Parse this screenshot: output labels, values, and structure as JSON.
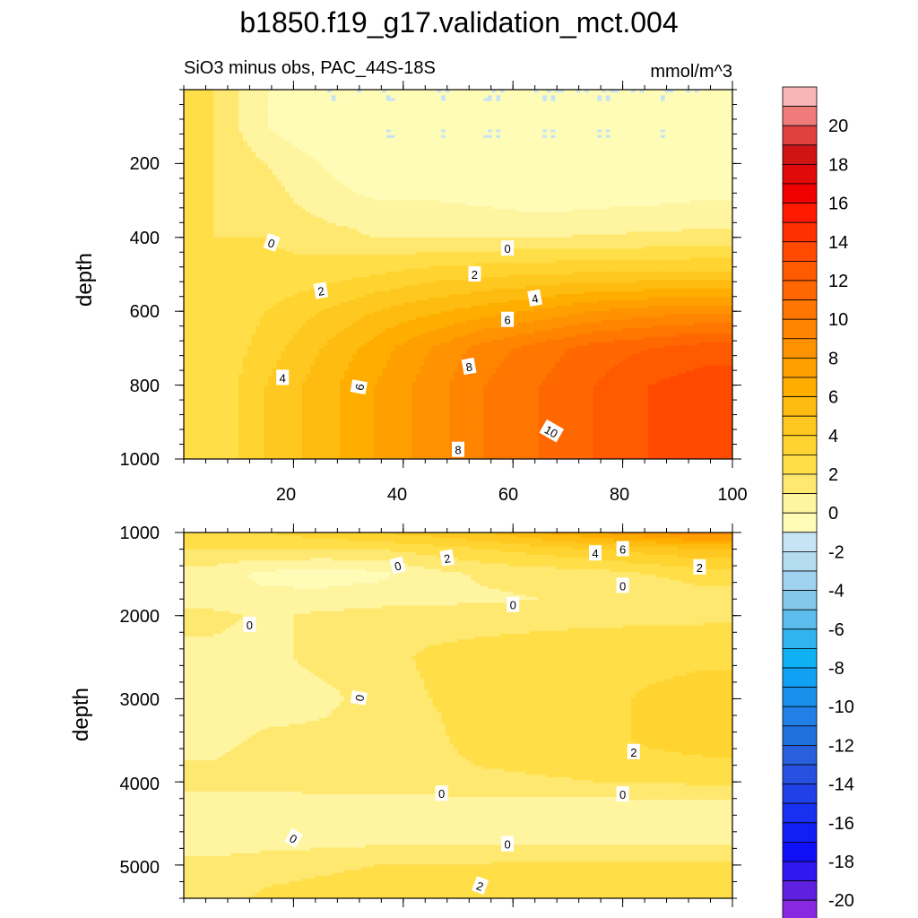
{
  "title": "b1850.f19_g17.validation_mct.004",
  "chart_data": [
    {
      "type": "heatmap",
      "panel": "top",
      "subtitle_left": "SiO3 minus obs, PAC_44S-18S",
      "subtitle_right": "mmol/m^3",
      "ylabel": "depth",
      "xlim": [
        0,
        100
      ],
      "ylim": [
        0,
        1000
      ],
      "y_reversed": true,
      "x_ticks": [
        "20",
        "40",
        "60",
        "80",
        "100"
      ],
      "y_ticks": [
        "200",
        "400",
        "600",
        "800",
        "1000"
      ],
      "columns_x": [
        5,
        15,
        25,
        35,
        45,
        55,
        65,
        75,
        85,
        95
      ],
      "rows_depth": [
        0,
        100,
        200,
        300,
        400,
        500,
        600,
        700,
        800,
        900,
        1000
      ],
      "values": [
        [
          1,
          -1,
          -2,
          -2,
          -2,
          -2,
          -2,
          -2,
          -2,
          -2
        ],
        [
          1,
          -1,
          -2,
          -2,
          -2,
          -2,
          -2,
          -2,
          -2,
          -2
        ],
        [
          1,
          0,
          -1,
          -2,
          -2,
          -2,
          -2,
          -2,
          -2,
          -2
        ],
        [
          1,
          0.5,
          -0.5,
          -1,
          -1,
          -1.2,
          -1.5,
          -1.3,
          -1.2,
          -1
        ],
        [
          1,
          1,
          0.5,
          0,
          0,
          0,
          0,
          0.1,
          0.2,
          0.3
        ],
        [
          1,
          1.2,
          1.5,
          2,
          2.5,
          2.8,
          3,
          3.2,
          3.2,
          3.3
        ],
        [
          1,
          2,
          3,
          4,
          4.8,
          5.5,
          6.2,
          7,
          7.5,
          7.8
        ],
        [
          1,
          2.5,
          4,
          5.5,
          7,
          8.5,
          9.5,
          10.5,
          11,
          11.5
        ],
        [
          1,
          3,
          4.5,
          6,
          7.5,
          9,
          10,
          11,
          12,
          12.5
        ],
        [
          1,
          3,
          4.5,
          6,
          7.5,
          9,
          10,
          11,
          12,
          12.5
        ],
        [
          1,
          3,
          4.5,
          6,
          7.5,
          9,
          10,
          11,
          12,
          12.5
        ]
      ],
      "contour_labels": [
        {
          "text": "0",
          "x": 16,
          "depth": 415,
          "angle": 20
        },
        {
          "text": "0",
          "x": 59,
          "depth": 430,
          "angle": 0
        },
        {
          "text": "2",
          "x": 25,
          "depth": 545,
          "angle": -10
        },
        {
          "text": "2",
          "x": 53,
          "depth": 500,
          "angle": 0
        },
        {
          "text": "4",
          "x": 64,
          "depth": 565,
          "angle": -10
        },
        {
          "text": "6",
          "x": 59,
          "depth": 623,
          "angle": 0
        },
        {
          "text": "8",
          "x": 52,
          "depth": 750,
          "angle": -10
        },
        {
          "text": "4",
          "x": 18,
          "depth": 780,
          "angle": 0
        },
        {
          "text": "6",
          "x": 32,
          "depth": 805,
          "angle": -80
        },
        {
          "text": "10",
          "x": 67,
          "depth": 925,
          "angle": 30
        },
        {
          "text": "8",
          "x": 50,
          "depth": 975,
          "angle": 0
        }
      ]
    },
    {
      "type": "heatmap",
      "panel": "bottom",
      "ylabel": "depth",
      "xlim": [
        0,
        100
      ],
      "ylim": [
        1000,
        5400
      ],
      "y_reversed": true,
      "y_ticks": [
        "1000",
        "2000",
        "3000",
        "4000",
        "5000"
      ],
      "columns_x": [
        5,
        15,
        25,
        35,
        45,
        55,
        65,
        75,
        85,
        95
      ],
      "rows_depth": [
        1000,
        1200,
        1500,
        1800,
        2000,
        2500,
        3000,
        3500,
        4000,
        4300,
        4700,
        5000,
        5400
      ],
      "values": [
        [
          1.5,
          2,
          2.5,
          3,
          3.5,
          4,
          5,
          6,
          7,
          8
        ],
        [
          1,
          1,
          1,
          1,
          1.5,
          2,
          2.5,
          3,
          3.5,
          4
        ],
        [
          -0.5,
          -1.3,
          -1.5,
          -1.3,
          -0.4,
          0.2,
          0.4,
          0.5,
          1,
          1.5
        ],
        [
          -0.5,
          -0.7,
          -0.6,
          -0.4,
          -0.3,
          -0.2,
          0,
          0,
          0.2,
          0.5
        ],
        [
          0.3,
          -0.2,
          0.2,
          0.4,
          0.5,
          0.6,
          0.7,
          0.8,
          0.8,
          0.8
        ],
        [
          -0.3,
          -0.3,
          0.3,
          0.6,
          1.2,
          1.4,
          1.5,
          1.5,
          1.6,
          1.8
        ],
        [
          -0.4,
          -0.5,
          -0.3,
          0.4,
          1,
          1.4,
          1.5,
          1.6,
          2.2,
          2.5
        ],
        [
          -0.3,
          0.2,
          0.3,
          0.5,
          0.8,
          1.4,
          1.5,
          1.6,
          2.2,
          2.5
        ],
        [
          0.3,
          0.4,
          0.5,
          0.6,
          0.7,
          0.8,
          0.9,
          1,
          1.1,
          1.2
        ],
        [
          -0.5,
          -0.6,
          -0.6,
          -0.6,
          -0.6,
          -0.6,
          -0.6,
          -0.6,
          -0.5,
          -0.5
        ],
        [
          -0.6,
          -0.5,
          -0.4,
          -0.3,
          -0.3,
          -0.3,
          -0.3,
          -0.3,
          -0.3,
          -0.3
        ],
        [
          0.3,
          0.6,
          0.8,
          1,
          1,
          1.1,
          1.2,
          1.2,
          1.2,
          1.2
        ],
        [
          0.5,
          1.2,
          1.4,
          1.5,
          1.5,
          1.5,
          1.6,
          1.6,
          1.6,
          1.6
        ]
      ],
      "contour_labels": [
        {
          "text": "0",
          "x": 39,
          "depth": 1400,
          "angle": -15
        },
        {
          "text": "2",
          "x": 48,
          "depth": 1310,
          "angle": -10
        },
        {
          "text": "4",
          "x": 75,
          "depth": 1250,
          "angle": 0
        },
        {
          "text": "6",
          "x": 80,
          "depth": 1200,
          "angle": 0
        },
        {
          "text": "2",
          "x": 94,
          "depth": 1420,
          "angle": 0
        },
        {
          "text": "0",
          "x": 80,
          "depth": 1640,
          "angle": 0
        },
        {
          "text": "0",
          "x": 60,
          "depth": 1870,
          "angle": 0
        },
        {
          "text": "0",
          "x": 12,
          "depth": 2110,
          "angle": 0
        },
        {
          "text": "0",
          "x": 32,
          "depth": 2990,
          "angle": -80
        },
        {
          "text": "2",
          "x": 82,
          "depth": 3640,
          "angle": 0
        },
        {
          "text": "0",
          "x": 47,
          "depth": 4140,
          "angle": 0
        },
        {
          "text": "0",
          "x": 80,
          "depth": 4150,
          "angle": 0
        },
        {
          "text": "0",
          "x": 20,
          "depth": 4680,
          "angle": 30
        },
        {
          "text": "0",
          "x": 59,
          "depth": 4750,
          "angle": 0
        },
        {
          "text": "2",
          "x": 54,
          "depth": 5250,
          "angle": 20
        }
      ]
    }
  ],
  "colorbar": {
    "labels": [
      "20",
      "18",
      "16",
      "14",
      "12",
      "10",
      "8",
      "6",
      "4",
      "2",
      "0",
      "-2",
      "-4",
      "-6",
      "-8",
      "-10",
      "-12",
      "-14",
      "-16",
      "-18",
      "-20"
    ],
    "levels": [
      21,
      20,
      19,
      18,
      17,
      16,
      15,
      14,
      13,
      12,
      11,
      10,
      9,
      8,
      7,
      6,
      5,
      4,
      3,
      2,
      1,
      0,
      -1,
      -2,
      -3,
      -4,
      -5,
      -6,
      -7,
      -8,
      -9,
      -10,
      -11,
      -12,
      -13,
      -14,
      -15,
      -16,
      -17,
      -18,
      -19,
      -20,
      -21
    ],
    "colors": [
      "#f9b6b6",
      "#f07b7b",
      "#e04040",
      "#d01414",
      "#e00a0a",
      "#f00000",
      "#ff1a00",
      "#ff3000",
      "#ff4a00",
      "#ff5a00",
      "#ff6800",
      "#ff7600",
      "#ff8400",
      "#ff9200",
      "#ffa000",
      "#ffae00",
      "#ffbc10",
      "#ffc820",
      "#ffd430",
      "#ffde48",
      "#ffe870",
      "#fff4a0",
      "#fffcb8",
      "#c6e4f4",
      "#b4dcf0",
      "#9fd2ee",
      "#84c8ec",
      "#5cbcec",
      "#30b4f0",
      "#10b0f4",
      "#10a0f4",
      "#1890ec",
      "#2080e8",
      "#2070e0",
      "#2860dc",
      "#2850e0",
      "#2040e8",
      "#1830f0",
      "#1020f4",
      "#1010f8",
      "#3018f0",
      "#6020e0",
      "#8828e0"
    ]
  }
}
